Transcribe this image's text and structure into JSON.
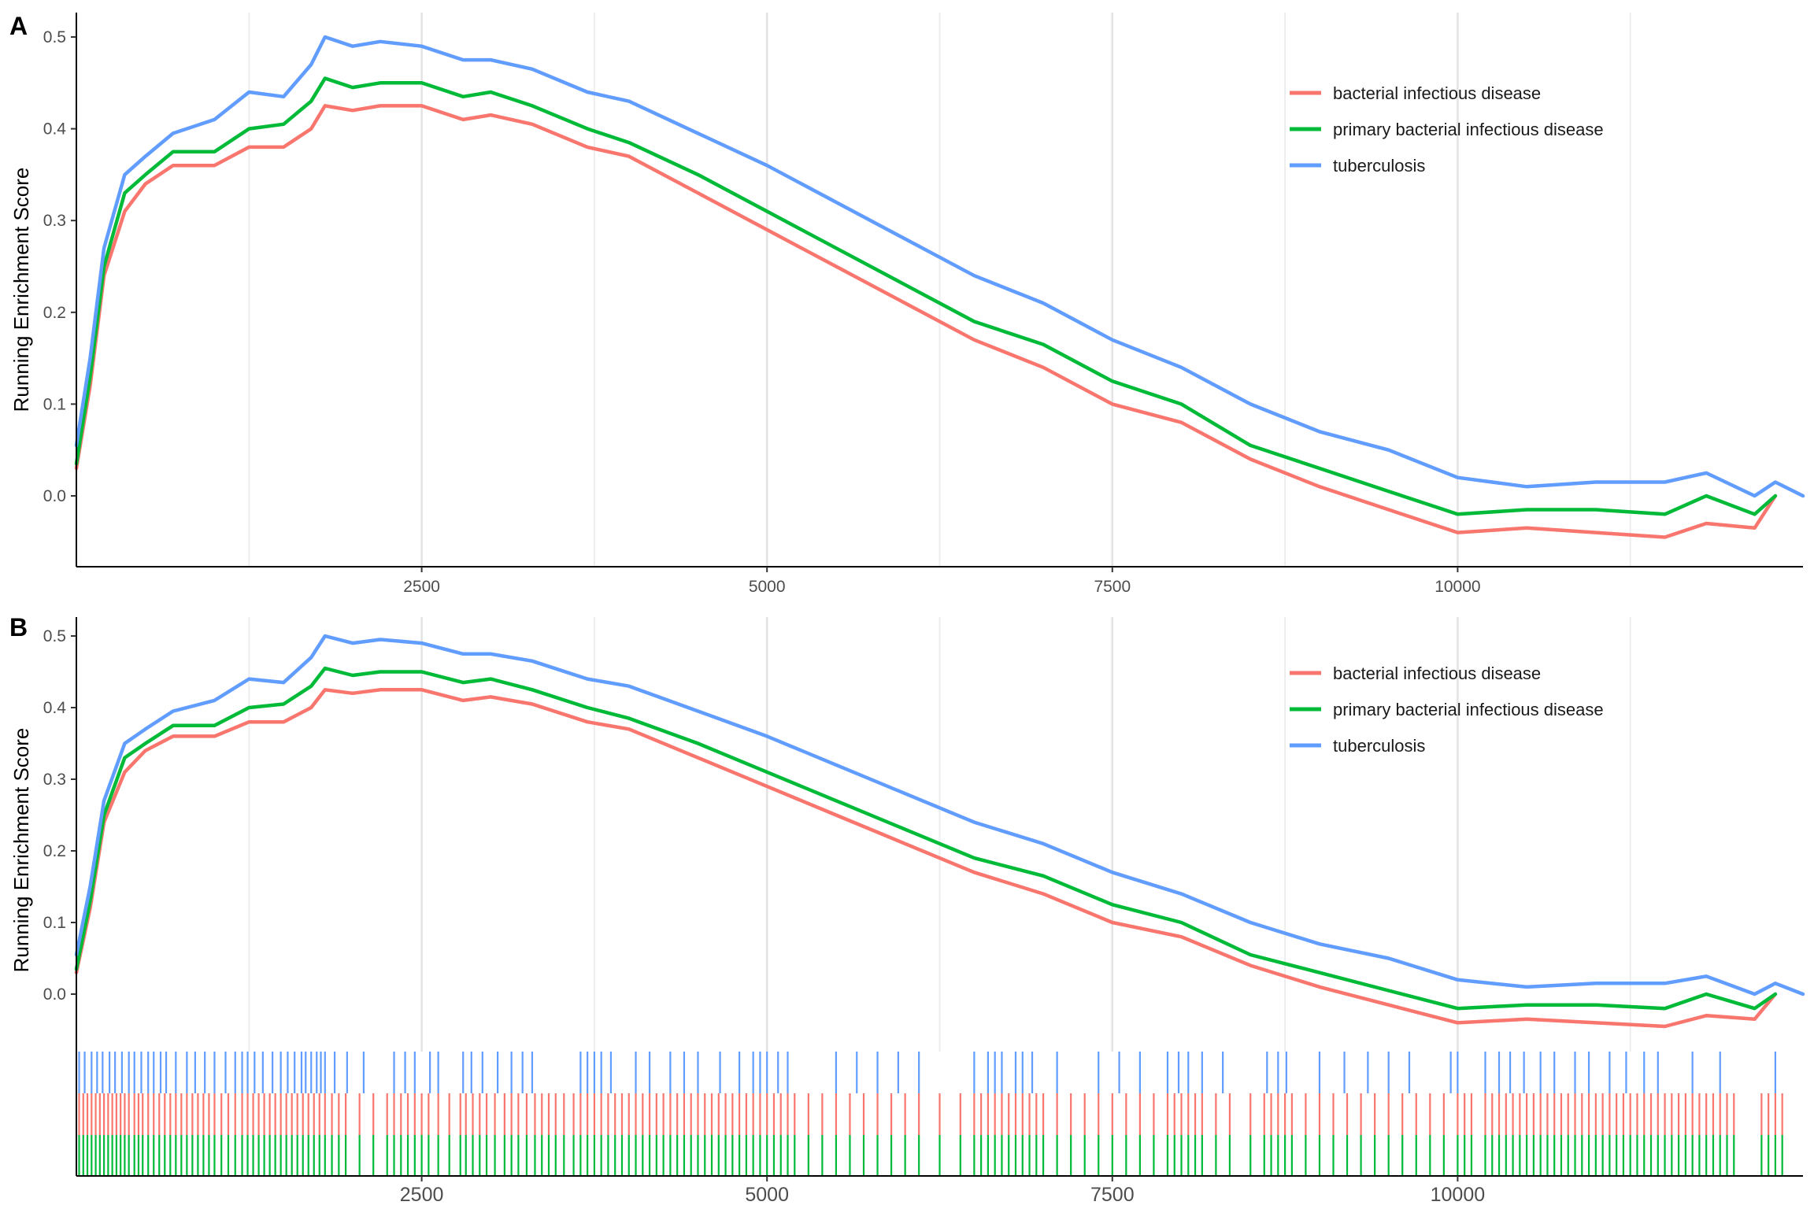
{
  "chart_data": [
    {
      "panel_tag": "A",
      "type": "line",
      "title": "",
      "xlabel": "",
      "ylabel": "Running Enrichment Score",
      "xlim": [
        0,
        12500
      ],
      "ylim": [
        -0.08,
        0.52
      ],
      "x_ticks": [
        "2500",
        "5000",
        "7500",
        "10000"
      ],
      "y_ticks": [
        "0.0",
        "0.1",
        "0.2",
        "0.3",
        "0.4",
        "0.5"
      ],
      "grid": "vertical",
      "legend_position": "top-right",
      "legend": [
        "bacterial infectious disease",
        "primary bacterial infectious disease",
        "tuberculosis"
      ],
      "series": [
        {
          "name": "bacterial infectious disease",
          "color": "#F8766D",
          "x": [
            0,
            100,
            200,
            350,
            500,
            700,
            1000,
            1250,
            1500,
            1700,
            1800,
            2000,
            2200,
            2500,
            2800,
            3000,
            3300,
            3700,
            4000,
            4500,
            5000,
            5500,
            6000,
            6500,
            7000,
            7500,
            8000,
            8500,
            9000,
            9500,
            10000,
            10500,
            11000,
            11500,
            11800,
            12150,
            12300
          ],
          "y": [
            0.03,
            0.12,
            0.24,
            0.31,
            0.34,
            0.36,
            0.36,
            0.38,
            0.38,
            0.4,
            0.425,
            0.42,
            0.425,
            0.425,
            0.41,
            0.415,
            0.405,
            0.38,
            0.37,
            0.33,
            0.29,
            0.25,
            0.21,
            0.17,
            0.14,
            0.1,
            0.08,
            0.04,
            0.01,
            -0.015,
            -0.04,
            -0.035,
            -0.04,
            -0.045,
            -0.03,
            -0.035,
            0.0
          ]
        },
        {
          "name": "primary bacterial infectious disease",
          "color": "#00BA38",
          "x": [
            0,
            100,
            200,
            350,
            500,
            700,
            1000,
            1250,
            1500,
            1700,
            1800,
            2000,
            2200,
            2500,
            2800,
            3000,
            3300,
            3700,
            4000,
            4500,
            5000,
            5500,
            6000,
            6500,
            7000,
            7500,
            8000,
            8500,
            9000,
            9500,
            10000,
            10500,
            11000,
            11500,
            11800,
            12150,
            12300
          ],
          "y": [
            0.035,
            0.13,
            0.25,
            0.33,
            0.35,
            0.375,
            0.375,
            0.4,
            0.405,
            0.43,
            0.455,
            0.445,
            0.45,
            0.45,
            0.435,
            0.44,
            0.425,
            0.4,
            0.385,
            0.35,
            0.31,
            0.27,
            0.23,
            0.19,
            0.165,
            0.125,
            0.1,
            0.055,
            0.03,
            0.005,
            -0.02,
            -0.015,
            -0.015,
            -0.02,
            0.0,
            -0.02,
            0.0
          ]
        },
        {
          "name": "tuberculosis",
          "color": "#619CFF",
          "x": [
            0,
            100,
            200,
            350,
            500,
            700,
            1000,
            1250,
            1500,
            1700,
            1800,
            2000,
            2200,
            2500,
            2800,
            3000,
            3300,
            3700,
            4000,
            4500,
            5000,
            5500,
            6000,
            6500,
            7000,
            7500,
            8000,
            8500,
            9000,
            9500,
            10000,
            10500,
            11000,
            11500,
            11800,
            12150,
            12300,
            12500
          ],
          "y": [
            0.055,
            0.15,
            0.27,
            0.35,
            0.37,
            0.395,
            0.41,
            0.44,
            0.435,
            0.47,
            0.5,
            0.49,
            0.495,
            0.49,
            0.475,
            0.475,
            0.465,
            0.44,
            0.43,
            0.395,
            0.36,
            0.32,
            0.28,
            0.24,
            0.21,
            0.17,
            0.14,
            0.1,
            0.07,
            0.05,
            0.02,
            0.01,
            0.015,
            0.015,
            0.025,
            0.0,
            0.015,
            0.0
          ]
        }
      ]
    },
    {
      "panel_tag": "B",
      "type": "line",
      "title": "",
      "xlabel": "",
      "ylabel": "Running Enrichment Score",
      "xlim": [
        0,
        12500
      ],
      "ylim": [
        -0.08,
        0.52
      ],
      "x_ticks": [
        "2500",
        "5000",
        "7500",
        "10000"
      ],
      "y_ticks": [
        "0.0",
        "0.1",
        "0.2",
        "0.3",
        "0.4",
        "0.5"
      ],
      "grid": "vertical",
      "legend_position": "top-right",
      "legend": [
        "bacterial infectious disease",
        "primary bacterial infectious disease",
        "tuberculosis"
      ],
      "series_same_as_panel": "A",
      "hit_rugs": [
        {
          "name": "tuberculosis",
          "color": "#619CFF",
          "ranks": [
            20,
            60,
            110,
            150,
            190,
            240,
            280,
            330,
            380,
            420,
            470,
            520,
            560,
            610,
            650,
            720,
            800,
            860,
            930,
            1000,
            1080,
            1150,
            1200,
            1240,
            1290,
            1350,
            1420,
            1480,
            1530,
            1580,
            1630,
            1660,
            1700,
            1740,
            1770,
            1800,
            1870,
            1960,
            2080,
            2300,
            2380,
            2450,
            2560,
            2620,
            2800,
            2860,
            2940,
            3050,
            3150,
            3230,
            3300,
            3650,
            3700,
            3750,
            3800,
            3870,
            4050,
            4150,
            4300,
            4400,
            4500,
            4660,
            4800,
            4900,
            4950,
            5000,
            5080,
            5150,
            5500,
            5650,
            5800,
            5950,
            6100,
            6500,
            6600,
            6650,
            6700,
            6800,
            6850,
            6920,
            7100,
            7400,
            7550,
            7700,
            7900,
            7980,
            8050,
            8150,
            8300,
            8620,
            8700,
            8760,
            9000,
            9180,
            9350,
            9500,
            9650,
            9950,
            10000,
            10200,
            10300,
            10380,
            10480,
            10600,
            10700,
            10850,
            10950,
            11100,
            11220,
            11350,
            11450,
            11700,
            11900,
            12300
          ]
        },
        {
          "name": "bacterial infectious disease",
          "color": "#F8766D",
          "ranks": [
            20,
            50,
            80,
            110,
            140,
            170,
            200,
            230,
            260,
            290,
            320,
            350,
            380,
            420,
            450,
            480,
            520,
            560,
            600,
            640,
            680,
            720,
            760,
            800,
            840,
            880,
            920,
            960,
            1000,
            1050,
            1100,
            1150,
            1200,
            1240,
            1280,
            1320,
            1360,
            1400,
            1440,
            1480,
            1520,
            1560,
            1600,
            1640,
            1680,
            1720,
            1760,
            1800,
            1850,
            1900,
            1950,
            2050,
            2150,
            2250,
            2300,
            2350,
            2400,
            2450,
            2500,
            2550,
            2620,
            2700,
            2780,
            2820,
            2870,
            2920,
            2970,
            3030,
            3100,
            3150,
            3200,
            3260,
            3320,
            3370,
            3420,
            3470,
            3530,
            3600,
            3650,
            3700,
            3750,
            3800,
            3850,
            3900,
            3950,
            4000,
            4050,
            4100,
            4150,
            4200,
            4250,
            4300,
            4350,
            4400,
            4450,
            4500,
            4550,
            4600,
            4650,
            4700,
            4750,
            4800,
            4850,
            4900,
            4950,
            5000,
            5050,
            5100,
            5150,
            5200,
            5300,
            5400,
            5500,
            5600,
            5700,
            5800,
            5900,
            6000,
            6100,
            6250,
            6400,
            6500,
            6550,
            6600,
            6650,
            6700,
            6750,
            6800,
            6850,
            6900,
            6950,
            7000,
            7100,
            7200,
            7300,
            7400,
            7500,
            7600,
            7700,
            7800,
            7900,
            7950,
            8000,
            8050,
            8100,
            8150,
            8250,
            8350,
            8500,
            8600,
            8650,
            8700,
            8750,
            8800,
            8900,
            9000,
            9100,
            9200,
            9300,
            9400,
            9500,
            9600,
            9700,
            9800,
            9900,
            10000,
            10050,
            10100,
            10200,
            10250,
            10300,
            10350,
            10400,
            10450,
            10500,
            10550,
            10600,
            10650,
            10700,
            10750,
            10800,
            10850,
            10900,
            10950,
            11000,
            11050,
            11100,
            11150,
            11200,
            11250,
            11300,
            11350,
            11400,
            11450,
            11500,
            11550,
            11600,
            11650,
            11700,
            11750,
            11800,
            11850,
            11900,
            11950,
            12000,
            12200,
            12250,
            12300,
            12350
          ]
        },
        {
          "name": "primary bacterial infectious disease",
          "color": "#00BA38",
          "ranks": [
            20,
            50,
            80,
            110,
            140,
            170,
            200,
            230,
            260,
            290,
            320,
            350,
            380,
            420,
            450,
            480,
            520,
            560,
            600,
            640,
            680,
            720,
            760,
            800,
            840,
            880,
            920,
            960,
            1000,
            1050,
            1100,
            1150,
            1200,
            1240,
            1280,
            1320,
            1360,
            1400,
            1440,
            1480,
            1520,
            1560,
            1600,
            1640,
            1680,
            1720,
            1760,
            1800,
            1850,
            1900,
            1950,
            2050,
            2150,
            2250,
            2300,
            2350,
            2400,
            2450,
            2500,
            2550,
            2620,
            2700,
            2780,
            2820,
            2870,
            2920,
            2970,
            3030,
            3100,
            3150,
            3200,
            3260,
            3320,
            3370,
            3420,
            3470,
            3530,
            3600,
            3650,
            3700,
            3750,
            3800,
            3850,
            3900,
            3950,
            4000,
            4050,
            4100,
            4150,
            4200,
            4250,
            4300,
            4350,
            4400,
            4450,
            4500,
            4550,
            4600,
            4650,
            4700,
            4750,
            4800,
            4850,
            4900,
            4950,
            5000,
            5050,
            5100,
            5150,
            5200,
            5300,
            5400,
            5500,
            5600,
            5700,
            5800,
            5900,
            6000,
            6100,
            6250,
            6400,
            6500,
            6550,
            6600,
            6650,
            6700,
            6750,
            6800,
            6850,
            6900,
            6950,
            7000,
            7100,
            7200,
            7300,
            7400,
            7500,
            7600,
            7700,
            7800,
            7900,
            7950,
            8000,
            8050,
            8100,
            8150,
            8250,
            8350,
            8500,
            8600,
            8650,
            8700,
            8750,
            8800,
            8900,
            9000,
            9100,
            9200,
            9300,
            9400,
            9500,
            9600,
            9700,
            9800,
            9900,
            10000,
            10050,
            10100,
            10200,
            10250,
            10300,
            10350,
            10400,
            10450,
            10500,
            10550,
            10600,
            10650,
            10700,
            10750,
            10800,
            10850,
            10900,
            10950,
            11000,
            11050,
            11100,
            11150,
            11200,
            11250,
            11300,
            11350,
            11400,
            11450,
            11500,
            11550,
            11600,
            11650,
            11700,
            11750,
            11800,
            11850,
            11900,
            11950,
            12000,
            12200,
            12250,
            12300,
            12350
          ]
        }
      ]
    }
  ]
}
